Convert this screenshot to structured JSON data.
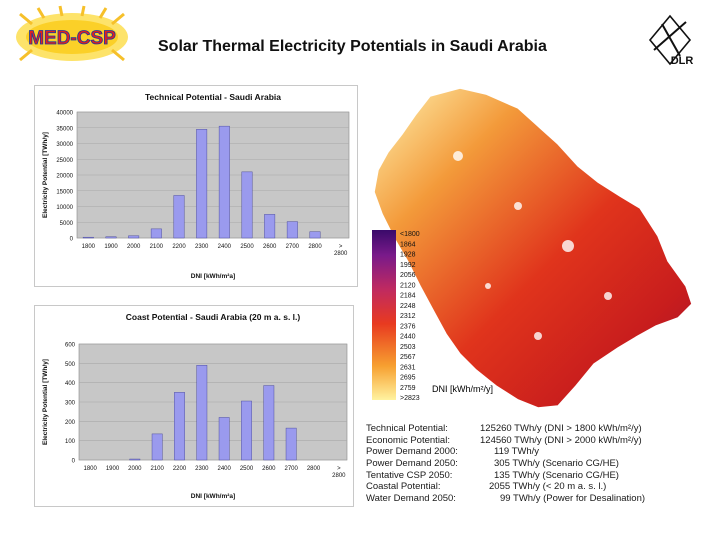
{
  "header": {
    "title": "Solar Thermal Electricity Potentials in Saudi Arabia",
    "logo_left_text": "MED-CSP",
    "logo_right_text": "DLR"
  },
  "colors": {
    "bar": "#9a9aee",
    "bar_stroke": "#5050a0",
    "plot_bg": "#c7c7c7",
    "grid": "#a8a8a8",
    "map_low": "#fff6a0",
    "map_mid": "#e53a1e",
    "map_high": "#5b1a7a"
  },
  "chart_data": [
    {
      "type": "bar",
      "title": "Technical Potential - Saudi Arabia",
      "xlabel": "DNI [kWh/m²a]",
      "ylabel": "Electricity Potential [TWh/y]",
      "categories": [
        "1800",
        "1900",
        "2000",
        "2100",
        "2200",
        "2300",
        "2400",
        "2500",
        "2600",
        "2700",
        "2800",
        ">\n2800"
      ],
      "values": [
        250,
        400,
        700,
        2900,
        13500,
        34500,
        35500,
        21000,
        7500,
        5200,
        2000,
        0
      ],
      "ylim": [
        0,
        40000
      ],
      "yticks": [
        "0",
        "5000",
        "10000",
        "15000",
        "20000",
        "25000",
        "30000",
        "35000",
        "40000"
      ],
      "grid": true
    },
    {
      "type": "bar",
      "title": "Coast Potential - Saudi Arabia (20 m a. s. l.)",
      "xlabel": "DNI [kWh/m²a]",
      "ylabel": "Electricity Potential [TWh/y]",
      "categories": [
        "1800",
        "1900",
        "2000",
        "2100",
        "2200",
        "2300",
        "2400",
        "2500",
        "2600",
        "2700",
        "2800",
        ">\n2800"
      ],
      "values": [
        0,
        0,
        5,
        135,
        350,
        490,
        220,
        305,
        385,
        165,
        0,
        0
      ],
      "ylim": [
        0,
        600
      ],
      "yticks": [
        "0",
        "100",
        "200",
        "300",
        "400",
        "500",
        "600"
      ],
      "grid": true
    }
  ],
  "map": {
    "legend_values": [
      "<1800",
      "1864",
      "1928",
      "1992",
      "2056",
      "2120",
      "2184",
      "2248",
      "2312",
      "2376",
      "2440",
      "2503",
      "2567",
      "2631",
      "2695",
      "2759",
      ">2823"
    ],
    "legend_label": "DNI [kWh/m²/y]"
  },
  "summary": [
    {
      "label": "Technical Potential:",
      "value": "125260 TWh/y (DNI > 1800 kWh/m²/y)"
    },
    {
      "label": "Economic Potential:",
      "value": "124560 TWh/y (DNI > 2000 kWh/m²/y)"
    },
    {
      "label": "Power Demand 2000:",
      "value": "119 TWh/y"
    },
    {
      "label": "Power Demand 2050:",
      "value": "305 TWh/y (Scenario CG/HE)"
    },
    {
      "label": "Tentative CSP 2050:",
      "value": "135 TWh/y (Scenario CG/HE)"
    },
    {
      "label": "Coastal Potential:",
      "value": "2055 TWh/y (< 20 m a. s. l.)"
    },
    {
      "label": "Water Demand 2050:",
      "value": "99 TWh/y (Power for Desalination)"
    }
  ]
}
